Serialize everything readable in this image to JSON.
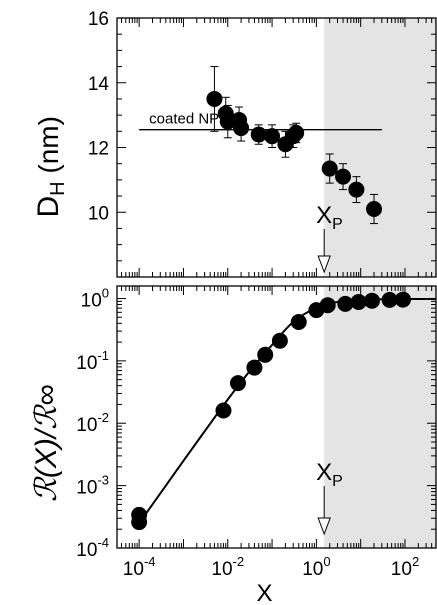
{
  "chart_data": [
    {
      "type": "scatter",
      "panel": "top",
      "ylabel": "D",
      "ylabel_sub": "H",
      "ylabel_unit": " (nm)",
      "xscale": "log",
      "xlim_exp": [
        -4.5,
        2.7
      ],
      "ylim": [
        8,
        16
      ],
      "yticks": [
        10,
        12,
        14,
        16
      ],
      "yticks_labels": [
        "10",
        "12",
        "14",
        "16"
      ],
      "shaded_from_x": 1.5,
      "hline": {
        "y": 12.55,
        "x_from": 0.0001,
        "x_to": 30,
        "label": "coated NP"
      },
      "marker_label": {
        "main": "X",
        "sub": "P",
        "x": 1.5
      },
      "series": [
        {
          "points": [
            {
              "x": 0.005,
              "y": 13.5,
              "err": 1.0
            },
            {
              "x": 0.009,
              "y": 13.05,
              "err": 0.5
            },
            {
              "x": 0.01,
              "y": 12.8,
              "err": 0.5
            },
            {
              "x": 0.018,
              "y": 12.85,
              "err": 0.4
            },
            {
              "x": 0.02,
              "y": 12.6,
              "err": 0.4
            },
            {
              "x": 0.05,
              "y": 12.4,
              "err": 0.3
            },
            {
              "x": 0.1,
              "y": 12.35,
              "err": 0.35
            },
            {
              "x": 0.2,
              "y": 12.1,
              "err": 0.4
            },
            {
              "x": 0.3,
              "y": 12.35,
              "err": 0.35
            },
            {
              "x": 0.35,
              "y": 12.45,
              "err": 0.3
            },
            {
              "x": 2,
              "y": 11.35,
              "err": 0.45
            },
            {
              "x": 4,
              "y": 11.1,
              "err": 0.4
            },
            {
              "x": 8,
              "y": 10.7,
              "err": 0.4
            },
            {
              "x": 20,
              "y": 10.1,
              "err": 0.45
            }
          ]
        }
      ]
    },
    {
      "type": "scatter",
      "panel": "bottom",
      "ylabel": "ℛ(X)/ℛ∞",
      "xlabel": "X",
      "xscale": "log",
      "yscale": "log",
      "xlim_exp": [
        -4.5,
        2.7
      ],
      "ylim_exp": [
        -4,
        0.2
      ],
      "xticks_exp": [
        -4,
        -2,
        0,
        2
      ],
      "xticks_labels": [
        {
          "base": "10",
          "exp": "-4"
        },
        {
          "base": "10",
          "exp": "-2"
        },
        {
          "base": "10",
          "exp": "0"
        },
        {
          "base": "10",
          "exp": "2"
        }
      ],
      "yticks_exp": [
        -4,
        -3,
        -2,
        -1,
        0
      ],
      "yticks_labels": [
        {
          "base": "10",
          "exp": "-4"
        },
        {
          "base": "10",
          "exp": "-3"
        },
        {
          "base": "10",
          "exp": "-2"
        },
        {
          "base": "10",
          "exp": "-1"
        },
        {
          "base": "10",
          "exp": "0"
        }
      ],
      "shaded_from_x": 1.5,
      "marker_label": {
        "main": "X",
        "sub": "P",
        "x": 1.5
      },
      "series": [
        {
          "points": [
            {
              "x": 0.0001,
              "y": 0.00026
            },
            {
              "x": 0.0001,
              "y": 0.00034
            },
            {
              "x": 0.008,
              "y": 0.016
            },
            {
              "x": 0.017,
              "y": 0.044
            },
            {
              "x": 0.04,
              "y": 0.078
            },
            {
              "x": 0.07,
              "y": 0.125
            },
            {
              "x": 0.15,
              "y": 0.21
            },
            {
              "x": 0.4,
              "y": 0.42
            },
            {
              "x": 1.0,
              "y": 0.65
            },
            {
              "x": 1.8,
              "y": 0.78
            },
            {
              "x": 4.5,
              "y": 0.82
            },
            {
              "x": 9,
              "y": 0.88
            },
            {
              "x": 18,
              "y": 0.92
            },
            {
              "x": 45,
              "y": 0.95
            },
            {
              "x": 90,
              "y": 0.96
            }
          ]
        }
      ],
      "fit_curve": {
        "x": [
          0.0001,
          0.0003,
          0.001,
          0.003,
          0.01,
          0.03,
          0.1,
          0.3,
          1,
          3,
          10,
          30,
          100,
          500
        ],
        "y": [
          0.00025,
          0.00075,
          0.0025,
          0.0074,
          0.024,
          0.066,
          0.18,
          0.42,
          0.71,
          0.88,
          0.95,
          0.97,
          0.98,
          0.98
        ]
      }
    }
  ]
}
